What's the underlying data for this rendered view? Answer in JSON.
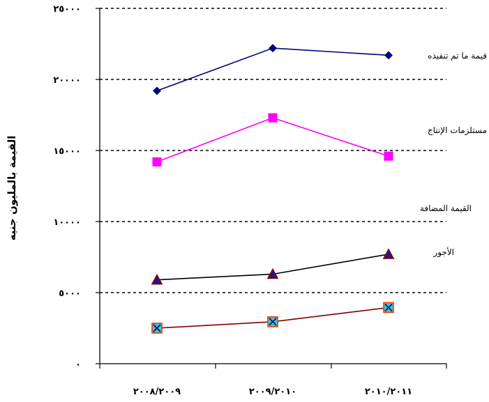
{
  "chart_data": {
    "type": "line",
    "categories": [
      "٢٠٠٨/٢٠٠٩",
      "٢٠٠٩/٢٠١٠",
      "٢٠١٠/٢٠١١"
    ],
    "ylabel": "القيمة بالمليون جنيه",
    "ylim": [
      0,
      25000
    ],
    "yticks": [
      0,
      5000,
      10000,
      15000,
      20000,
      25000
    ],
    "ytick_labels": [
      "٠",
      "٥٠٠٠",
      "١٠٠٠٠",
      "١٥٠٠٠",
      "٢٠٠٠٠",
      "٢٥٠٠٠"
    ],
    "grid": "horizontal dashed",
    "series": [
      {
        "name": "قيمة ما تم تنفيذه",
        "values": [
          19200,
          22200,
          21700
        ],
        "color": "#00007f",
        "marker": "diamond"
      },
      {
        "name": "مستلزمات الإنتاج",
        "values": [
          14200,
          17300,
          14600
        ],
        "color": "#ff00ff",
        "marker": "square"
      },
      {
        "name": "القيمة المضافة",
        "values": [
          5900,
          6300,
          7700
        ],
        "color": "#000000",
        "marker": "triangle"
      },
      {
        "name": "الأجور",
        "values": [
          2500,
          2950,
          3950
        ],
        "color": "#800000",
        "marker": "x-square"
      }
    ]
  }
}
